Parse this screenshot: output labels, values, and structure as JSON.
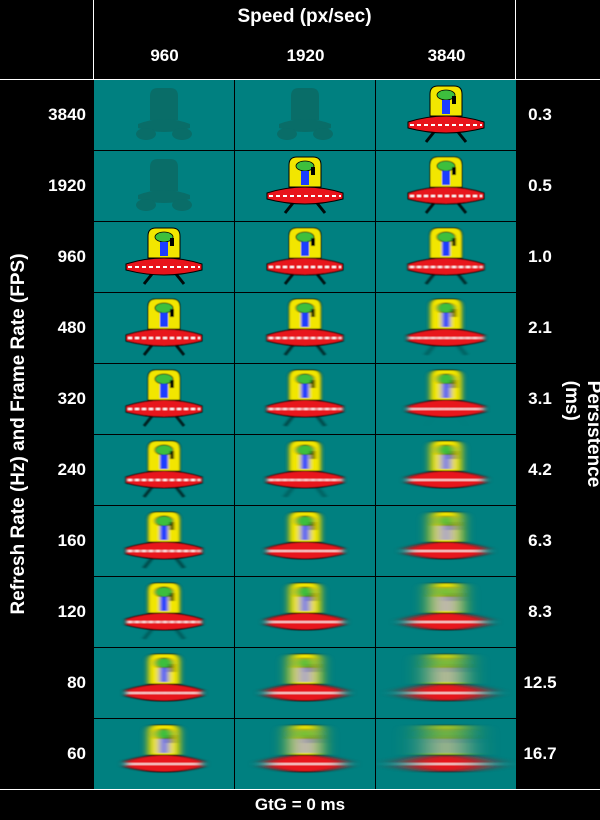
{
  "top_title": "Speed (px/sec)",
  "speeds": [
    "960",
    "1920",
    "3840"
  ],
  "left_axis_label": "Refresh Rate (Hz) and Frame Rate (FPS)",
  "right_axis_label": "Persistence (ms)",
  "footer": "GtG = 0 ms",
  "rows": [
    {
      "rate": "3840",
      "persistence": "0.3"
    },
    {
      "rate": "1920",
      "persistence": "0.5"
    },
    {
      "rate": "960",
      "persistence": "1.0"
    },
    {
      "rate": "480",
      "persistence": "2.1"
    },
    {
      "rate": "320",
      "persistence": "3.1"
    },
    {
      "rate": "240",
      "persistence": "4.2"
    },
    {
      "rate": "160",
      "persistence": "6.3"
    },
    {
      "rate": "120",
      "persistence": "8.3"
    },
    {
      "rate": "80",
      "persistence": "12.5"
    },
    {
      "rate": "60",
      "persistence": "16.7"
    }
  ],
  "colors": {
    "cell_background": "#008080",
    "ufo_body": "#e8141b",
    "dome": "#f2e600",
    "alien": "#3dbf3d",
    "alien_body": "#1c3cff",
    "placeholder_silhouette": "#0a6b66"
  }
}
